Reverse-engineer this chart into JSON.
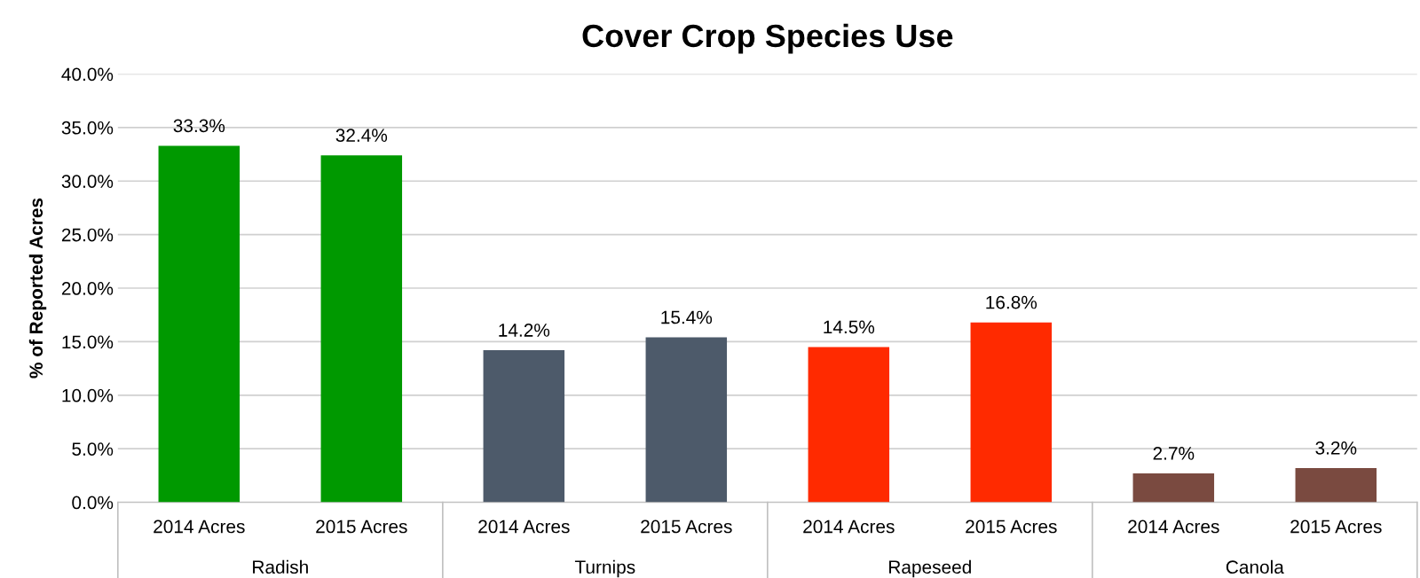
{
  "chart_data": {
    "type": "bar",
    "title": "Cover Crop Species Use",
    "ylabel": "% of Reported Acres",
    "categories": [
      "2014 Acres",
      "2015 Acres",
      "2014 Acres",
      "2015 Acres",
      "2014 Acres",
      "2015 Acres",
      "2014 Acres",
      "2015 Acres"
    ],
    "values": [
      33.3,
      32.4,
      14.2,
      15.4,
      14.5,
      16.8,
      2.7,
      3.2
    ],
    "value_labels": [
      "33.3%",
      "32.4%",
      "14.2%",
      "15.4%",
      "14.5%",
      "16.8%",
      "2.7%",
      "3.2%"
    ],
    "colors": [
      "#009900",
      "#009900",
      "#4d5a6a",
      "#4d5a6a",
      "#ff2a00",
      "#ff2a00",
      "#7a4a40",
      "#7a4a40"
    ],
    "annotations": [
      "Radish",
      "Turnips",
      "Rapeseed",
      "Canola"
    ],
    "ylim": [
      0,
      40
    ],
    "yticks": [
      {
        "value": 0,
        "label": "0.0%"
      },
      {
        "value": 5,
        "label": "5.0%"
      },
      {
        "value": 10,
        "label": "10.0%"
      },
      {
        "value": 15,
        "label": "15.0%"
      },
      {
        "value": 20,
        "label": "20.0%"
      },
      {
        "value": 25,
        "label": "25.0%"
      },
      {
        "value": 30,
        "label": "30.0%"
      },
      {
        "value": 35,
        "label": "35.0%"
      },
      {
        "value": 40,
        "label": "40.0%"
      }
    ],
    "grid": "y",
    "legend": false
  }
}
